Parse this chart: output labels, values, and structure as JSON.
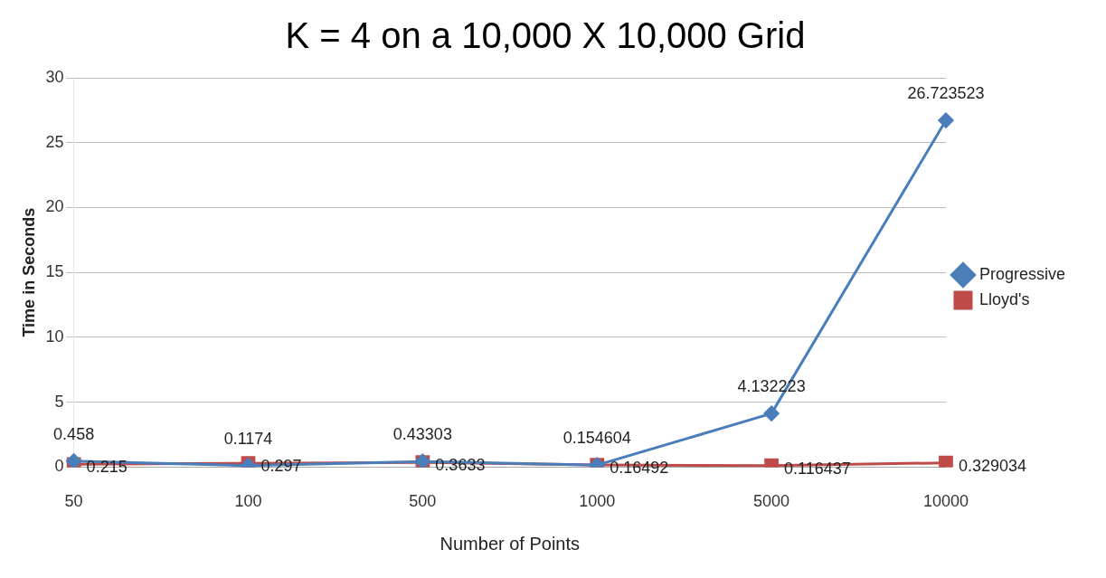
{
  "chart_data": {
    "type": "line",
    "title": "K = 4 on a 10,000 X 10,000 Grid",
    "xlabel": "Number of Points",
    "ylabel": "Time in Seconds",
    "categories": [
      "50",
      "100",
      "500",
      "1000",
      "5000",
      "10000"
    ],
    "series": [
      {
        "name": "Progressive",
        "color": "#4a7ebb",
        "marker": "diamond",
        "values": [
          0.458,
          0.1174,
          0.43303,
          0.154604,
          4.132223,
          26.723523
        ]
      },
      {
        "name": "Lloyd's",
        "color": "#be4b48",
        "marker": "square",
        "values": [
          0.215,
          0.297,
          0.3633,
          0.16492,
          0.116437,
          0.329034
        ]
      }
    ],
    "ylim": [
      0,
      30
    ],
    "yticks": [
      0,
      5,
      10,
      15,
      20,
      25,
      30
    ],
    "grid": "y",
    "legend": "right",
    "data_labels": true,
    "line_style": "solid"
  }
}
